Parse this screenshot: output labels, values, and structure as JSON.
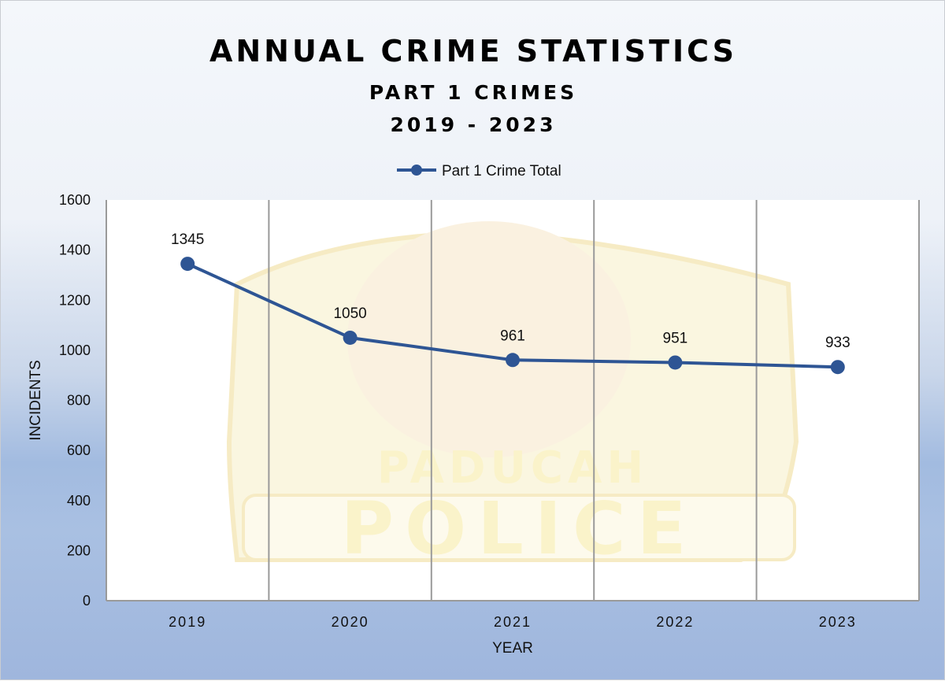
{
  "chart_data": {
    "type": "line",
    "title": "ANNUAL CRIME STATISTICS",
    "subtitle": [
      "PART 1 CRIMES",
      "2019 - 2023"
    ],
    "categories": [
      "2019",
      "2020",
      "2021",
      "2022",
      "2023"
    ],
    "series": [
      {
        "name": "Part 1 Crime Total",
        "values": [
          1345,
          1050,
          961,
          951,
          933
        ],
        "color": "#2e5594"
      }
    ],
    "data_labels": [
      "1345",
      "1050",
      "961",
      "951",
      "933"
    ],
    "xlabel": "YEAR",
    "ylabel": "INCIDENTS",
    "ylim": [
      0,
      1600
    ],
    "yticks": [
      0,
      200,
      400,
      600,
      800,
      1000,
      1200,
      1400,
      1600
    ],
    "grid": "vertical lines between categories",
    "legend": "top-center",
    "watermark": {
      "text": [
        "PADUCAH",
        "POLICE"
      ],
      "kind": "logo"
    }
  }
}
